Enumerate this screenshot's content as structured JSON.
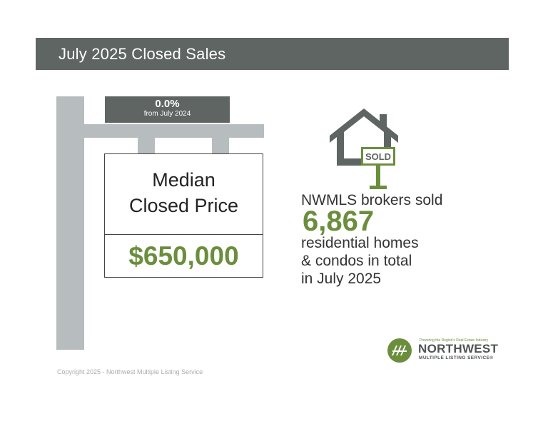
{
  "banner": {
    "title": "July 2025 Closed Sales"
  },
  "change": {
    "value": "0.0%",
    "label": "from July 2024"
  },
  "sign": {
    "label_line1": "Median",
    "label_line2": "Closed Price",
    "price": "$650,000"
  },
  "house_icon": {
    "icon": "house-sold-sign-icon",
    "sign_text": "SOLD"
  },
  "stats": {
    "line1": "NWMLS brokers sold",
    "number": "6,867",
    "line2": "residential homes",
    "line3": "& condos in total",
    "line4": "in July 2025"
  },
  "logo": {
    "tagline": "Powering the Region's Real Estate Industry",
    "name": "NORTHWEST",
    "subname": "MULTIPLE LISTING SERVICE®"
  },
  "footer": {
    "copyright": "Copyright 2025 - Northwest Multiple Listing Service"
  },
  "colors": {
    "banner_bg": "#5f6563",
    "accent_green": "#6b8e3d",
    "post_gray": "#b7bcbe"
  }
}
